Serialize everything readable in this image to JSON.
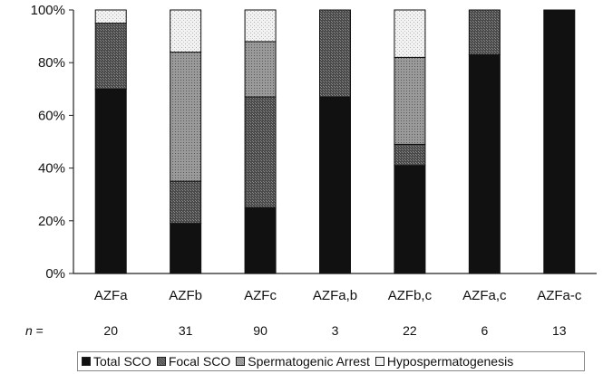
{
  "chart_data": {
    "type": "bar",
    "stacked": true,
    "percent": true,
    "categories": [
      "AZFa",
      "AZFb",
      "AZFc",
      "AZFa,b",
      "AZFb,c",
      "AZFa,c",
      "AZFa-c"
    ],
    "n_label": "n =",
    "n_values": [
      "20",
      "31",
      "90",
      "3",
      "22",
      "6",
      "13"
    ],
    "yticks": [
      "0%",
      "20%",
      "40%",
      "60%",
      "80%",
      "100%"
    ],
    "ylim": [
      0,
      100
    ],
    "grid": false,
    "legend_position": "bottom",
    "series": [
      {
        "name": "Total SCO",
        "color": "#111111",
        "values": [
          70,
          19,
          25,
          67,
          41,
          83,
          100
        ]
      },
      {
        "name": "Focal SCO",
        "color": "#5a5a5a",
        "values": [
          25,
          16,
          42,
          33,
          8,
          17,
          0
        ]
      },
      {
        "name": "Spermatogenic Arrest",
        "color": "#9a9a9a",
        "values": [
          0,
          49,
          21,
          0,
          33,
          0,
          0
        ]
      },
      {
        "name": "Hypospermatogenesis",
        "color": "#e6e6e6",
        "values": [
          5,
          16,
          12,
          0,
          18,
          0,
          0
        ]
      }
    ]
  }
}
